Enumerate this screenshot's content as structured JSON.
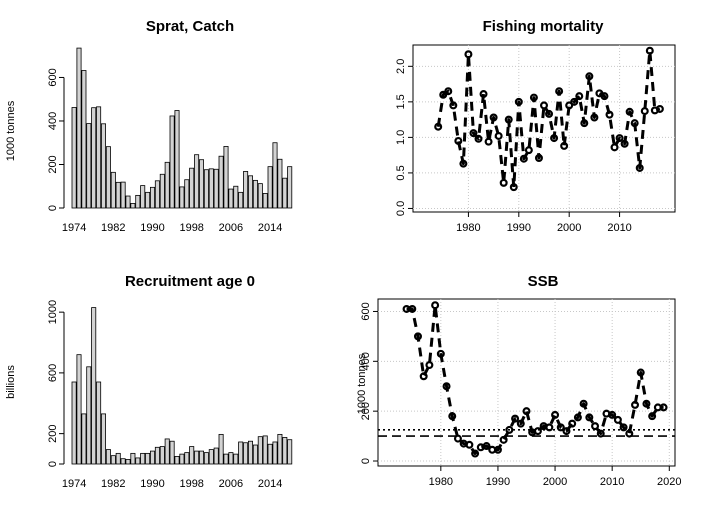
{
  "chart_data": [
    {
      "id": "catch",
      "type": "bar",
      "title": "Sprat,  Catch",
      "ylabel": "1000 tonnes",
      "xlabel": "",
      "ylim": [
        0,
        740
      ],
      "yticks": [
        0,
        200,
        400,
        600
      ],
      "xtick_labels": [
        "1974",
        "1982",
        "1990",
        "1998",
        "2006",
        "2014"
      ],
      "categories": [
        1974,
        1975,
        1976,
        1977,
        1978,
        1979,
        1980,
        1981,
        1982,
        1983,
        1984,
        1985,
        1986,
        1987,
        1988,
        1989,
        1990,
        1991,
        1992,
        1993,
        1994,
        1995,
        1996,
        1997,
        1998,
        1999,
        2000,
        2001,
        2002,
        2003,
        2004,
        2005,
        2006,
        2007,
        2008,
        2009,
        2010,
        2011,
        2012,
        2013,
        2014,
        2015,
        2016,
        2017,
        2018
      ],
      "values": [
        462,
        735,
        632,
        388,
        461,
        465,
        387,
        282,
        164,
        118,
        119,
        55,
        21,
        58,
        103,
        72,
        95,
        125,
        155,
        210,
        423,
        448,
        97,
        130,
        183,
        245,
        222,
        176,
        180,
        178,
        238,
        283,
        87,
        100,
        72,
        168,
        148,
        127,
        112,
        67,
        190,
        300,
        224,
        137,
        190
      ]
    },
    {
      "id": "fmort",
      "type": "line",
      "title": "Fishing mortality",
      "ylabel": "",
      "xlabel": "",
      "xlim": [
        1969,
        2021
      ],
      "ylim": [
        -0.05,
        2.3
      ],
      "yticks": [
        0.0,
        0.5,
        1.0,
        1.5,
        2.0
      ],
      "ytick_labels": [
        "0.0",
        "0.5",
        "1.0",
        "1.5",
        "2.0"
      ],
      "xticks": [
        1980,
        1990,
        2000,
        2010
      ],
      "grid": true,
      "x": [
        1974,
        1975,
        1976,
        1977,
        1978,
        1979,
        1980,
        1981,
        1982,
        1983,
        1984,
        1985,
        1986,
        1987,
        1988,
        1989,
        1990,
        1991,
        1992,
        1993,
        1994,
        1995,
        1996,
        1997,
        1998,
        1999,
        2000,
        2001,
        2002,
        2003,
        2004,
        2005,
        2006,
        2007,
        2008,
        2009,
        2010,
        2011,
        2012,
        2013,
        2014,
        2015,
        2016,
        2017,
        2018
      ],
      "y": [
        1.15,
        1.6,
        1.65,
        1.45,
        0.95,
        0.63,
        2.17,
        1.06,
        0.98,
        1.61,
        0.94,
        1.28,
        1.02,
        0.36,
        1.25,
        0.3,
        1.5,
        0.7,
        0.82,
        1.56,
        0.71,
        1.45,
        1.33,
        0.99,
        1.65,
        0.88,
        1.45,
        1.5,
        1.58,
        1.2,
        1.86,
        1.28,
        1.62,
        1.58,
        1.32,
        0.86,
        0.99,
        0.91,
        1.36,
        1.2,
        0.57,
        1.37,
        2.22,
        1.38,
        1.4
      ]
    },
    {
      "id": "recruit",
      "type": "bar",
      "title": "Recruitment age 0",
      "ylabel": "billions",
      "xlabel": "",
      "ylim": [
        0,
        1080
      ],
      "yticks": [
        0,
        200,
        600,
        1000
      ],
      "xtick_labels": [
        "1974",
        "1982",
        "1990",
        "1998",
        "2006",
        "2014"
      ],
      "categories": [
        1974,
        1975,
        1976,
        1977,
        1978,
        1979,
        1980,
        1981,
        1982,
        1983,
        1984,
        1985,
        1986,
        1987,
        1988,
        1989,
        1990,
        1991,
        1992,
        1993,
        1994,
        1995,
        1996,
        1997,
        1998,
        1999,
        2000,
        2001,
        2002,
        2003,
        2004,
        2005,
        2006,
        2007,
        2008,
        2009,
        2010,
        2011,
        2012,
        2013,
        2014,
        2015,
        2016,
        2017,
        2018
      ],
      "values": [
        540,
        720,
        330,
        640,
        1030,
        540,
        330,
        95,
        55,
        70,
        35,
        30,
        70,
        40,
        70,
        70,
        85,
        110,
        115,
        165,
        150,
        50,
        65,
        75,
        115,
        85,
        85,
        75,
        95,
        105,
        195,
        65,
        75,
        65,
        145,
        140,
        150,
        125,
        180,
        185,
        130,
        145,
        195,
        175,
        160
      ]
    },
    {
      "id": "ssb",
      "type": "line",
      "title": "SSB",
      "ylabel": "1000 tonnes",
      "xlabel": "",
      "xlim": [
        1969,
        2021
      ],
      "ylim": [
        -20,
        650
      ],
      "yticks": [
        0,
        200,
        400,
        600
      ],
      "xticks": [
        1980,
        1990,
        2000,
        2010,
        2020
      ],
      "grid": true,
      "reference_lines": [
        {
          "value": 125,
          "style": "dotted"
        },
        {
          "value": 100,
          "style": "dashed"
        }
      ],
      "x": [
        1974,
        1975,
        1976,
        1977,
        1978,
        1979,
        1980,
        1981,
        1982,
        1983,
        1984,
        1985,
        1986,
        1987,
        1988,
        1989,
        1990,
        1991,
        1992,
        1993,
        1994,
        1995,
        1996,
        1997,
        1998,
        1999,
        2000,
        2001,
        2002,
        2003,
        2004,
        2005,
        2006,
        2007,
        2008,
        2009,
        2010,
        2011,
        2012,
        2013,
        2014,
        2015,
        2016,
        2017,
        2018,
        2019
      ],
      "y": [
        610,
        610,
        500,
        340,
        385,
        625,
        430,
        300,
        180,
        90,
        70,
        65,
        30,
        55,
        60,
        45,
        45,
        85,
        125,
        170,
        150,
        200,
        115,
        120,
        140,
        135,
        185,
        135,
        120,
        150,
        175,
        230,
        175,
        140,
        110,
        190,
        185,
        165,
        135,
        110,
        225,
        355,
        230,
        180,
        215,
        215
      ]
    }
  ]
}
